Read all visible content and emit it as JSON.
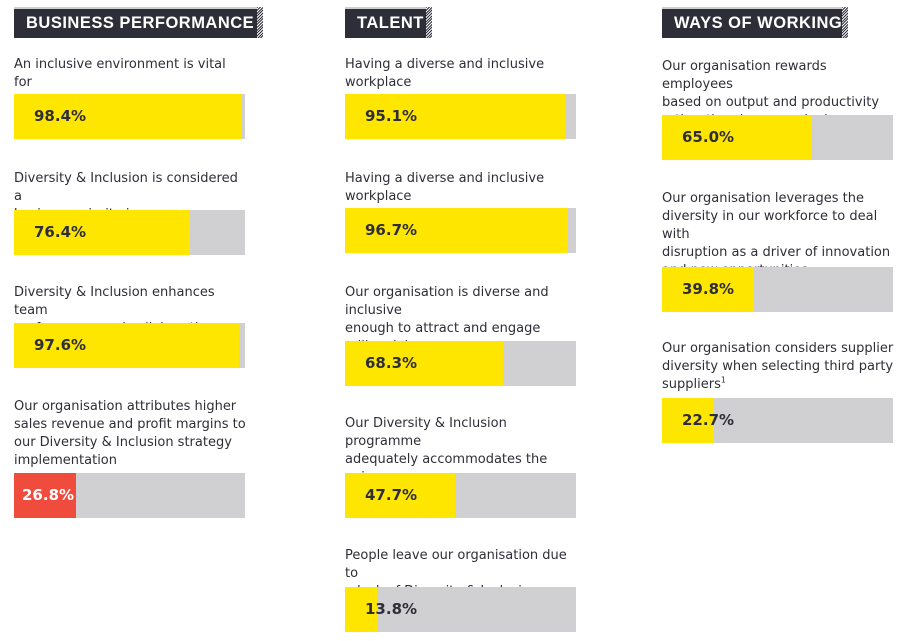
{
  "chart_data": [
    {
      "type": "bar",
      "title": "BUSINESS PERFORMANCE",
      "unit": "%",
      "xlim": [
        0,
        100
      ],
      "bars": [
        {
          "question": "An inclusive environment is vital for\nbusiness performance",
          "value": 98.4,
          "label": "98.4%",
          "highlight": false
        },
        {
          "question": "Diversity & Inclusion is considered a\nbusiness priority in our organisation",
          "value": 76.4,
          "label": "76.4%",
          "highlight": false
        },
        {
          "question": "Diversity & Inclusion enhances team\nperformance and collaboration",
          "value": 97.6,
          "label": "97.6%",
          "highlight": false
        },
        {
          "question": "Our organisation attributes higher\nsales revenue and profit margins to\nour Diversity & Inclusion strategy\nimplementation",
          "value": 26.8,
          "label": "26.8%",
          "highlight": true
        }
      ]
    },
    {
      "type": "bar",
      "title": "TALENT",
      "unit": "%",
      "xlim": [
        0,
        100
      ],
      "bars": [
        {
          "question": "Having a diverse and inclusive workplace\ncontributes to talent acquisition and retention",
          "value": 95.1,
          "label": "95.1%",
          "highlight": false
        },
        {
          "question": "Having a diverse and inclusive workplace\ncontributes to employee engagement",
          "value": 96.7,
          "label": "96.7%",
          "highlight": false
        },
        {
          "question": "Our organisation is diverse and inclusive\nenough to attract and engage millennial\nand young talent",
          "value": 68.3,
          "label": "68.3%",
          "highlight": false
        },
        {
          "question": "Our Diversity & Inclusion programme\nadequately accommodates the aging\npopulation",
          "value": 47.7,
          "label": "47.7%",
          "highlight": false
        },
        {
          "question": "People leave our organisation due to\na lack of Diversity & Inclusion",
          "value": 13.8,
          "label": "13.8%",
          "highlight": false
        }
      ]
    },
    {
      "type": "bar",
      "title": "WAYS OF WORKING",
      "unit": "%",
      "xlim": [
        0,
        100
      ],
      "bars": [
        {
          "question": "Our organisation rewards employees\nbased on output and productivity\nrather than hours worked",
          "value": 65.0,
          "label": "65.0%",
          "highlight": false
        },
        {
          "question": "Our organisation leverages the\ndiversity in our workforce to deal with\ndisruption as a driver of innovation\nand new opportunities",
          "value": 39.8,
          "label": "39.8%",
          "highlight": false
        },
        {
          "question": "Our organisation considers supplier\ndiversity when selecting third party\nsuppliers",
          "value": 22.7,
          "label": "22.7%",
          "highlight": false,
          "footnote": "1"
        }
      ]
    }
  ],
  "colors": {
    "fill": "#ffe600",
    "highlight": "#f04c3e",
    "track": "#d0d0d3",
    "header_bg": "#2e2e38",
    "text": "#2e2e38"
  }
}
